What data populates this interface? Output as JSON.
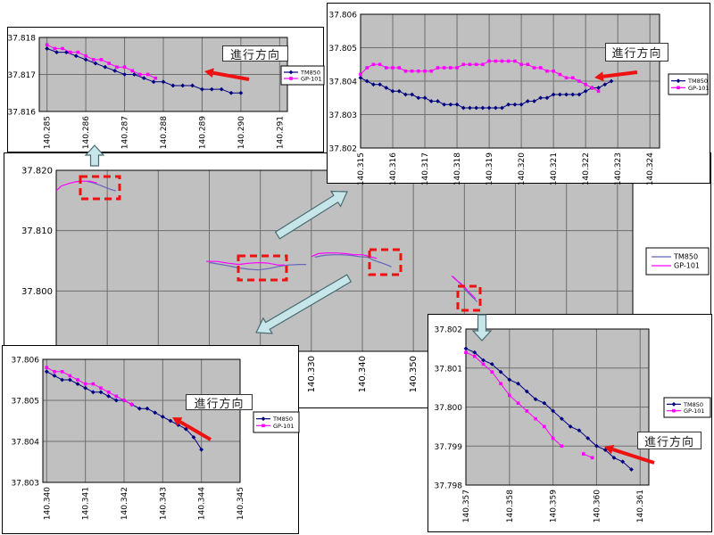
{
  "colors": {
    "plot_bg": "#c0c0c0",
    "grid": "#6e6e6e",
    "axis": "#000000",
    "tm850_inset": "#000080",
    "tm850_main": "#6666bb",
    "gp101": "#ff00ff",
    "highlight_red": "#ee1111",
    "callout_fill": "#c6e6ea",
    "callout_stroke": "#4a6a72"
  },
  "legend_labels": [
    "TM850",
    "GP-101"
  ],
  "chart_data": [
    {
      "id": "overview",
      "type": "line",
      "xlim": [
        140.28,
        140.393
      ],
      "ylim": [
        37.79,
        37.82
      ],
      "xticks": [
        140.33,
        140.34,
        140.35
      ],
      "xtick_labels": [
        "140.330",
        "140.340",
        "140.350"
      ],
      "xgrid": [
        140.29,
        140.3,
        140.31,
        140.32,
        140.33,
        140.34,
        140.35,
        140.36,
        140.37,
        140.38,
        140.39
      ],
      "yticks": [
        37.8,
        37.81,
        37.82
      ],
      "ytick_labels": [
        "37.800",
        "37.810",
        "37.820"
      ],
      "ygrid": [
        37.79,
        37.8,
        37.81,
        37.82
      ],
      "legend_position": "right",
      "series": [
        {
          "name": "TM850",
          "color": "#6666bb",
          "width": 1.2,
          "segments": [
            {
              "pts": [
                [
                  140.2859,
                  37.8182
                ],
                [
                  140.2873,
                  37.8179
                ],
                [
                  140.2887,
                  37.8175
                ],
                [
                  140.2898,
                  37.8171
                ],
                [
                  140.2908,
                  37.8168
                ],
                [
                  140.2917,
                  37.8166
                ]
              ]
            },
            {
              "pts": [
                [
                  140.3101,
                  37.8047
                ],
                [
                  140.3123,
                  37.8044
                ],
                [
                  140.3142,
                  37.8041
                ],
                [
                  140.316,
                  37.8038
                ],
                [
                  140.3178,
                  37.8036
                ],
                [
                  140.3196,
                  37.8035
                ],
                [
                  140.3216,
                  37.8037
                ],
                [
                  140.3238,
                  37.8041
                ],
                [
                  140.3255,
                  37.8043
                ],
                [
                  140.3276,
                  37.8044
                ],
                [
                  140.329,
                  37.8044
                ]
              ]
            },
            {
              "pts": [
                [
                  140.3307,
                  37.8056
                ],
                [
                  140.3325,
                  37.8059
                ],
                [
                  140.3342,
                  37.806
                ],
                [
                  140.3359,
                  37.806
                ],
                [
                  140.3377,
                  37.8059
                ],
                [
                  140.3394,
                  37.8057
                ],
                [
                  140.341,
                  37.8056
                ],
                [
                  140.3422,
                  37.8051
                ],
                [
                  140.3436,
                  37.8047
                ],
                [
                  140.3449,
                  37.8043
                ],
                [
                  140.3457,
                  37.804
                ]
              ]
            },
            {
              "pts": [
                [
                  140.3578,
                  37.8024
                ],
                [
                  140.3587,
                  37.8016
                ],
                [
                  140.3595,
                  37.8009
                ],
                [
                  140.3604,
                  37.8
                ],
                [
                  140.3611,
                  37.7994
                ],
                [
                  140.3618,
                  37.7988
                ],
                [
                  140.3625,
                  37.7982
                ]
              ]
            }
          ]
        },
        {
          "name": "GP-101",
          "color": "#ff00ff",
          "width": 1.2,
          "segments": [
            {
              "pts": [
                [
                  140.28,
                  37.8166
                ],
                [
                  140.281,
                  37.8174
                ],
                [
                  140.2824,
                  37.8178
                ],
                [
                  140.2838,
                  37.8181
                ],
                [
                  140.2852,
                  37.8182
                ],
                [
                  140.2866,
                  37.8182
                ],
                [
                  140.288,
                  37.8179
                ]
              ]
            },
            {
              "pts": [
                [
                  140.3094,
                  37.8049
                ],
                [
                  140.3116,
                  37.8049
                ],
                [
                  140.3137,
                  37.8046
                ],
                [
                  140.3158,
                  37.8044
                ],
                [
                  140.3178,
                  37.8046
                ],
                [
                  140.3199,
                  37.8047
                ],
                [
                  140.3216,
                  37.8046
                ],
                [
                  140.3234,
                  37.8043
                ],
                [
                  140.3248,
                  37.8043
                ]
              ]
            },
            {
              "pts": [
                [
                  140.33,
                  37.8057
                ],
                [
                  140.3314,
                  37.8062
                ],
                [
                  140.3331,
                  37.8063
                ],
                [
                  140.3349,
                  37.8063
                ],
                [
                  140.3366,
                  37.8062
                ],
                [
                  140.3384,
                  37.806
                ],
                [
                  140.3401,
                  37.806
                ],
                [
                  140.3415,
                  37.8057
                ],
                [
                  140.3428,
                  37.8054
                ]
              ]
            },
            {
              "pts": [
                [
                  140.3575,
                  37.8025
                ],
                [
                  140.3583,
                  37.8019
                ],
                [
                  140.3592,
                  37.8013
                ],
                [
                  140.3601,
                  37.8006
                ],
                [
                  140.3608,
                  37.7999
                ],
                [
                  140.3615,
                  37.7993
                ],
                [
                  140.3622,
                  37.7987
                ]
              ]
            }
          ]
        }
      ]
    },
    {
      "id": "inset_upper_left",
      "type": "line",
      "annotation": "進行方向",
      "xlim": [
        140.2848,
        140.2912
      ],
      "ylim": [
        37.816,
        37.818
      ],
      "xticks": [
        140.285,
        140.286,
        140.287,
        140.288,
        140.289,
        140.29,
        140.291
      ],
      "xtick_labels": [
        "140.285",
        "140.286",
        "140.287",
        "140.288",
        "140.289",
        "140.290",
        "140.291"
      ],
      "yticks": [
        37.816,
        37.817,
        37.818
      ],
      "ytick_labels": [
        "37.816",
        "37.817",
        "37.818"
      ],
      "legend_position": "right",
      "series": [
        {
          "name": "TM850",
          "color": "#000080",
          "marker": "diamond",
          "segments": [
            {
              "x0": 140.285,
              "dx": 0.00025,
              "y": [
                37.8177,
                37.8176,
                37.8176,
                37.8175,
                37.8174,
                37.8173,
                37.8172,
                37.8171,
                37.817,
                37.817,
                37.8169,
                37.8168,
                37.8168,
                37.8167,
                37.8167,
                37.8167,
                37.8166,
                37.8166,
                37.8166,
                37.8165,
                37.8165
              ]
            }
          ]
        },
        {
          "name": "GP-101",
          "color": "#ff00ff",
          "marker": "square",
          "segments": [
            {
              "x0": 140.285,
              "dx": 0.0002,
              "y": [
                37.8178,
                37.8177,
                37.8177,
                37.8176,
                37.8176,
                37.8175,
                37.8174,
                37.8174,
                37.8173,
                37.8172,
                37.8172,
                37.8171,
                37.817,
                37.817,
                37.8169
              ]
            }
          ]
        }
      ]
    },
    {
      "id": "inset_upper_right",
      "type": "line",
      "annotation": "進行方向",
      "xlim": [
        140.315,
        140.3243
      ],
      "ylim": [
        37.802,
        37.806
      ],
      "xticks": [
        140.315,
        140.316,
        140.317,
        140.318,
        140.319,
        140.32,
        140.321,
        140.322,
        140.323,
        140.324
      ],
      "xtick_labels": [
        "140.315",
        "140.316",
        "140.317",
        "140.318",
        "140.319",
        "140.320",
        "140.321",
        "140.322",
        "140.323",
        "140.324"
      ],
      "yticks": [
        37.802,
        37.803,
        37.804,
        37.805,
        37.806
      ],
      "ytick_labels": [
        "37.802",
        "37.803",
        "37.804",
        "37.805",
        "37.806"
      ],
      "legend_position": "right",
      "series": [
        {
          "name": "TM850",
          "color": "#000080",
          "marker": "diamond",
          "segments": [
            {
              "x0": 140.315,
              "dx": 0.0002,
              "y": [
                37.8041,
                37.804,
                37.8039,
                37.8039,
                37.8038,
                37.8037,
                37.8037,
                37.8036,
                37.8036,
                37.8035,
                37.8035,
                37.8034,
                37.8034,
                37.8033,
                37.8033,
                37.8033,
                37.8032,
                37.8032,
                37.8032,
                37.8032,
                37.8032,
                37.8032,
                37.8032,
                37.8033,
                37.8033,
                37.8033,
                37.8034,
                37.8034,
                37.8035,
                37.8035,
                37.8036,
                37.8036,
                37.8036,
                37.8036,
                37.8036,
                37.8037,
                37.8038,
                37.8038,
                37.8039,
                37.804
              ]
            }
          ]
        },
        {
          "name": "GP-101",
          "color": "#ff00ff",
          "marker": "square",
          "segments": [
            {
              "x0": 140.315,
              "dx": 0.0002,
              "y": [
                37.8042,
                37.8044,
                37.8045,
                37.8045,
                37.8044,
                37.8044,
                37.8044,
                37.8043,
                37.8043,
                37.8043,
                37.8043,
                37.8043,
                37.8044,
                37.8044,
                37.8044,
                37.8044,
                37.8045,
                37.8045,
                37.8045,
                37.8045,
                37.8046,
                37.8046,
                37.8046,
                37.8046,
                37.8046,
                37.8045,
                37.8045,
                37.8044,
                37.8044,
                37.8043,
                37.8043,
                37.8042,
                37.8041,
                37.8041,
                37.804,
                37.8039,
                37.8038,
                37.8037
              ]
            }
          ]
        }
      ]
    },
    {
      "id": "inset_lower_left",
      "type": "line",
      "annotation": "進行方向",
      "xlim": [
        140.3399,
        140.345
      ],
      "ylim": [
        37.803,
        37.806
      ],
      "xticks": [
        140.34,
        140.341,
        140.342,
        140.343,
        140.344,
        140.345
      ],
      "xtick_labels": [
        "140.340",
        "140.341",
        "140.342",
        "140.343",
        "140.344",
        "140.345"
      ],
      "yticks": [
        37.803,
        37.804,
        37.805,
        37.806
      ],
      "ytick_labels": [
        "37.803",
        "37.804",
        "37.805",
        "37.806"
      ],
      "legend_position": "right",
      "series": [
        {
          "name": "TM850",
          "color": "#000080",
          "marker": "diamond",
          "segments": [
            {
              "x0": 140.34,
              "dx": 0.0002,
              "y": [
                37.8057,
                37.8056,
                37.8055,
                37.8055,
                37.8054,
                37.8053,
                37.8052,
                37.8052,
                37.8051,
                37.805,
                37.805,
                37.8049,
                37.8048,
                37.8048,
                37.8047,
                37.8046,
                37.8045,
                37.8044,
                37.8043,
                37.8041,
                37.8038
              ]
            }
          ]
        },
        {
          "name": "GP-101",
          "color": "#ff00ff",
          "marker": "square",
          "segments": [
            {
              "x0": 140.34,
              "dx": 0.0002,
              "y": [
                37.8058,
                37.8057,
                37.8057,
                37.8056,
                37.8055,
                37.8054,
                37.8054,
                37.8053,
                37.8052,
                37.8051,
                37.805,
                37.8049
              ]
            }
          ]
        }
      ]
    },
    {
      "id": "inset_lower_right",
      "type": "line",
      "annotation": "進行方向",
      "xlim": [
        140.357,
        140.3612
      ],
      "ylim": [
        37.798,
        37.802
      ],
      "xticks": [
        140.357,
        140.358,
        140.359,
        140.36,
        140.361
      ],
      "xtick_labels": [
        "140.357",
        "140.358",
        "140.359",
        "140.360",
        "140.361"
      ],
      "yticks": [
        37.798,
        37.799,
        37.8,
        37.801,
        37.802
      ],
      "ytick_labels": [
        "37.798",
        "37.799",
        "37.800",
        "37.801",
        "37.802"
      ],
      "legend_position": "right",
      "series": [
        {
          "name": "TM850",
          "color": "#000080",
          "marker": "diamond",
          "segments": [
            {
              "x0": 140.357,
              "dx": 0.0002,
              "y": [
                37.8015,
                37.8014,
                37.8012,
                37.8011,
                37.8009,
                37.8007,
                37.8006,
                37.8004,
                37.8002,
                37.8001,
                37.7999,
                37.7997,
                37.7995,
                37.7994,
                37.7992,
                37.799,
                37.7989,
                37.7987,
                37.7986,
                37.7984
              ]
            }
          ]
        },
        {
          "name": "GP-101",
          "color": "#ff00ff",
          "marker": "square",
          "segments": [
            {
              "x0": 140.357,
              "dx": 0.0002,
              "y": [
                37.8014,
                37.8013,
                37.8011,
                37.8009,
                37.8006,
                37.8003,
                37.8001,
                37.7999,
                37.7997,
                37.7995,
                37.7992,
                37.799
              ]
            },
            {
              "pts": [
                [
                  140.3597,
                  37.7988
                ],
                [
                  140.3599,
                  37.7987
                ]
              ]
            }
          ]
        }
      ]
    }
  ]
}
